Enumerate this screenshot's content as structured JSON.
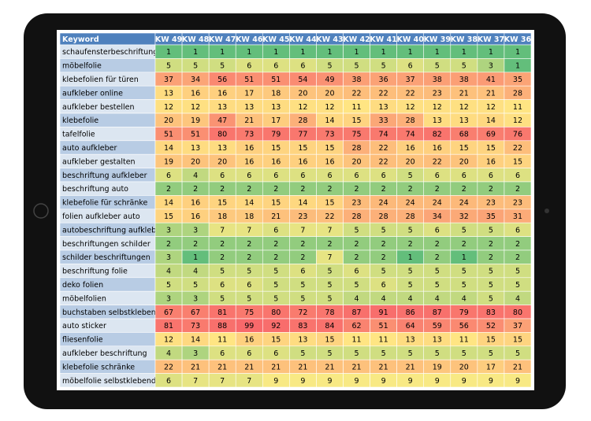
{
  "table": {
    "header": [
      "Keyword",
      "KW 49",
      "KW 48",
      "KW 47",
      "KW 46",
      "KW 45",
      "KW 44",
      "KW 43",
      "KW 42",
      "KW 41",
      "KW 40",
      "KW 39",
      "KW 38",
      "KW 37",
      "KW 36"
    ],
    "rows": [
      [
        "schaufensterbeschriftung",
        1,
        1,
        1,
        1,
        1,
        1,
        1,
        1,
        1,
        1,
        1,
        1,
        1,
        1
      ],
      [
        "möbelfolie",
        5,
        5,
        5,
        6,
        6,
        6,
        5,
        5,
        5,
        6,
        5,
        5,
        3,
        1
      ],
      [
        "klebefolien für türen",
        37,
        34,
        56,
        51,
        51,
        54,
        49,
        38,
        36,
        37,
        38,
        38,
        41,
        35
      ],
      [
        "aufkleber online",
        13,
        16,
        16,
        17,
        18,
        20,
        20,
        22,
        22,
        22,
        23,
        21,
        21,
        28
      ],
      [
        "aufkleber bestellen",
        12,
        12,
        13,
        13,
        13,
        12,
        12,
        11,
        13,
        12,
        12,
        12,
        12,
        11
      ],
      [
        "klebefolie",
        20,
        19,
        47,
        21,
        17,
        28,
        14,
        15,
        33,
        28,
        13,
        13,
        14,
        12
      ],
      [
        "tafelfolie",
        51,
        51,
        80,
        73,
        79,
        77,
        73,
        75,
        74,
        74,
        82,
        68,
        69,
        76
      ],
      [
        "auto aufkleber",
        14,
        13,
        13,
        16,
        15,
        15,
        15,
        28,
        22,
        16,
        16,
        15,
        15,
        22
      ],
      [
        "aufkleber gestalten",
        19,
        20,
        20,
        16,
        16,
        16,
        16,
        20,
        22,
        20,
        22,
        20,
        16,
        15
      ],
      [
        "beschriftung aufkleber",
        6,
        4,
        6,
        6,
        6,
        6,
        6,
        6,
        6,
        5,
        6,
        6,
        6,
        6
      ],
      [
        "beschriftung auto",
        2,
        2,
        2,
        2,
        2,
        2,
        2,
        2,
        2,
        2,
        2,
        2,
        2,
        2
      ],
      [
        "klebefolie für schränke",
        14,
        16,
        15,
        14,
        15,
        14,
        15,
        23,
        24,
        24,
        24,
        24,
        23,
        23
      ],
      [
        "folien aufkleber auto",
        15,
        16,
        18,
        18,
        21,
        23,
        22,
        28,
        28,
        28,
        34,
        32,
        35,
        31
      ],
      [
        "autobeschriftung aufkleber",
        3,
        3,
        7,
        7,
        6,
        7,
        7,
        5,
        5,
        5,
        6,
        5,
        5,
        6
      ],
      [
        "beschriftungen schilder",
        2,
        2,
        2,
        2,
        2,
        2,
        2,
        2,
        2,
        2,
        2,
        2,
        2,
        2
      ],
      [
        "schilder beschriftungen",
        3,
        1,
        2,
        2,
        2,
        2,
        7,
        2,
        2,
        1,
        2,
        1,
        2,
        2
      ],
      [
        "beschriftung folie",
        4,
        4,
        5,
        5,
        5,
        6,
        5,
        6,
        5,
        5,
        5,
        5,
        5,
        5
      ],
      [
        "deko folien",
        5,
        5,
        6,
        6,
        5,
        5,
        5,
        5,
        6,
        5,
        5,
        5,
        5,
        5
      ],
      [
        "möbelfolien",
        3,
        3,
        5,
        5,
        5,
        5,
        5,
        4,
        4,
        4,
        4,
        4,
        5,
        4
      ],
      [
        "buchstaben selbstklebend",
        67,
        67,
        81,
        75,
        80,
        72,
        78,
        87,
        91,
        86,
        87,
        79,
        83,
        80
      ],
      [
        "auto sticker",
        81,
        73,
        88,
        99,
        92,
        83,
        84,
        62,
        51,
        64,
        59,
        56,
        52,
        37
      ],
      [
        "fliesenfolie",
        12,
        14,
        11,
        16,
        15,
        13,
        15,
        11,
        11,
        13,
        13,
        11,
        15,
        15
      ],
      [
        "aufkleber beschriftung",
        4,
        3,
        6,
        6,
        6,
        5,
        5,
        5,
        5,
        5,
        5,
        5,
        5,
        5
      ],
      [
        "klebefolie schränke",
        22,
        21,
        21,
        21,
        21,
        21,
        21,
        21,
        21,
        21,
        19,
        20,
        17,
        21
      ],
      [
        "möbelfolie selbstklebend",
        6,
        7,
        7,
        7,
        9,
        9,
        9,
        9,
        9,
        9,
        9,
        9,
        9,
        9
      ]
    ]
  }
}
